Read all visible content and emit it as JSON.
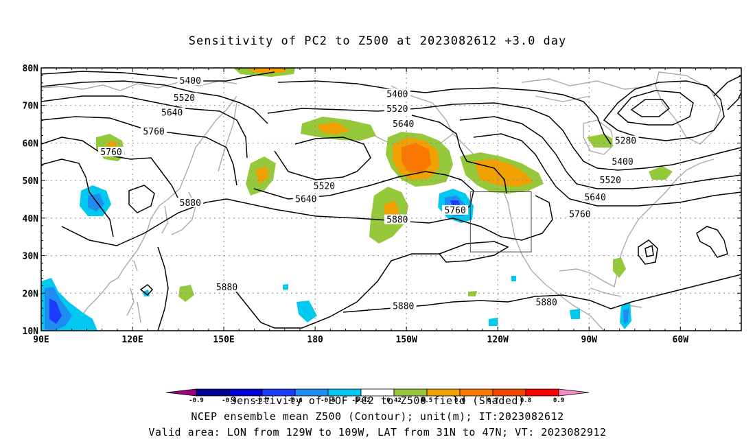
{
  "title": "Sensitivity of PC2 to Z500 at 2023082612 +3.0 day",
  "map": {
    "lat_ticks": [
      "80N",
      "70N",
      "60N",
      "50N",
      "40N",
      "30N",
      "20N",
      "10N"
    ],
    "lon_ticks": [
      "90E",
      "120E",
      "150E",
      "180",
      "150W",
      "120W",
      "90W",
      "60W"
    ],
    "lon_range": [
      90,
      320
    ],
    "lat_range": [
      10,
      80
    ],
    "contour_labels": [
      {
        "text": "5400",
        "lon": 139,
        "lat": 76.5
      },
      {
        "text": "5520",
        "lon": 137,
        "lat": 72
      },
      {
        "text": "5640",
        "lon": 133,
        "lat": 68
      },
      {
        "text": "5760",
        "lon": 127,
        "lat": 63
      },
      {
        "text": "5760",
        "lon": 113,
        "lat": 57.5
      },
      {
        "text": "5880",
        "lon": 139,
        "lat": 44
      },
      {
        "text": "5400",
        "lon": 207,
        "lat": 73
      },
      {
        "text": "5520",
        "lon": 207,
        "lat": 69
      },
      {
        "text": "5640",
        "lon": 209,
        "lat": 65
      },
      {
        "text": "5520",
        "lon": 183,
        "lat": 48.5
      },
      {
        "text": "5640",
        "lon": 177,
        "lat": 45
      },
      {
        "text": "5880",
        "lon": 207,
        "lat": 39.5
      },
      {
        "text": "5760",
        "lon": 226,
        "lat": 42
      },
      {
        "text": "5880",
        "lon": 151,
        "lat": 21.5
      },
      {
        "text": "5880",
        "lon": 209,
        "lat": 16.5
      },
      {
        "text": "5880",
        "lon": 256,
        "lat": 17.5
      },
      {
        "text": "5280",
        "lon": 282,
        "lat": 60.5
      },
      {
        "text": "5400",
        "lon": 281,
        "lat": 55
      },
      {
        "text": "5520",
        "lon": 277,
        "lat": 50
      },
      {
        "text": "5640",
        "lon": 272,
        "lat": 45.5
      },
      {
        "text": "5760",
        "lon": 267,
        "lat": 41
      }
    ],
    "valid_box": {
      "lon_min": 231,
      "lon_max": 251,
      "lat_min": 31,
      "lat_max": 47
    }
  },
  "colorbar": {
    "levels": [
      "-0.9",
      "-0.8",
      "-0.7",
      "-0.6",
      "-0.5",
      "-0.42",
      "0.42",
      "0.5",
      "0.6",
      "0.7",
      "0.8",
      "0.9"
    ],
    "colors": [
      "#a0007d",
      "#000096",
      "#0000d2",
      "#1e3cff",
      "#1e8cf0",
      "#00c8f0",
      "#ffffff",
      "#96c83c",
      "#f0a000",
      "#fa7800",
      "#f04600",
      "#ff0000",
      "#f08cc8"
    ]
  },
  "footer": {
    "line1": "Sensitivity of EOF PC2 to Z500 field (Shaded)",
    "line2": "NCEP ensemble mean Z500 (Contour); unit(m); IT:2023082612",
    "line3": "Valid area: LON from 129W to 109W, LAT from 31N to 47N; VT: 2023082912"
  },
  "colors": {
    "coast": "#aaaaaa",
    "contour": "#000000",
    "grid": "#888888",
    "neg_light": "#00c8f0",
    "neg_mid": "#1e8cf0",
    "neg_dark": "#1e3cff",
    "pos_green": "#96c83c",
    "pos_orange": "#f0a000",
    "pos_dark": "#fa7800"
  }
}
